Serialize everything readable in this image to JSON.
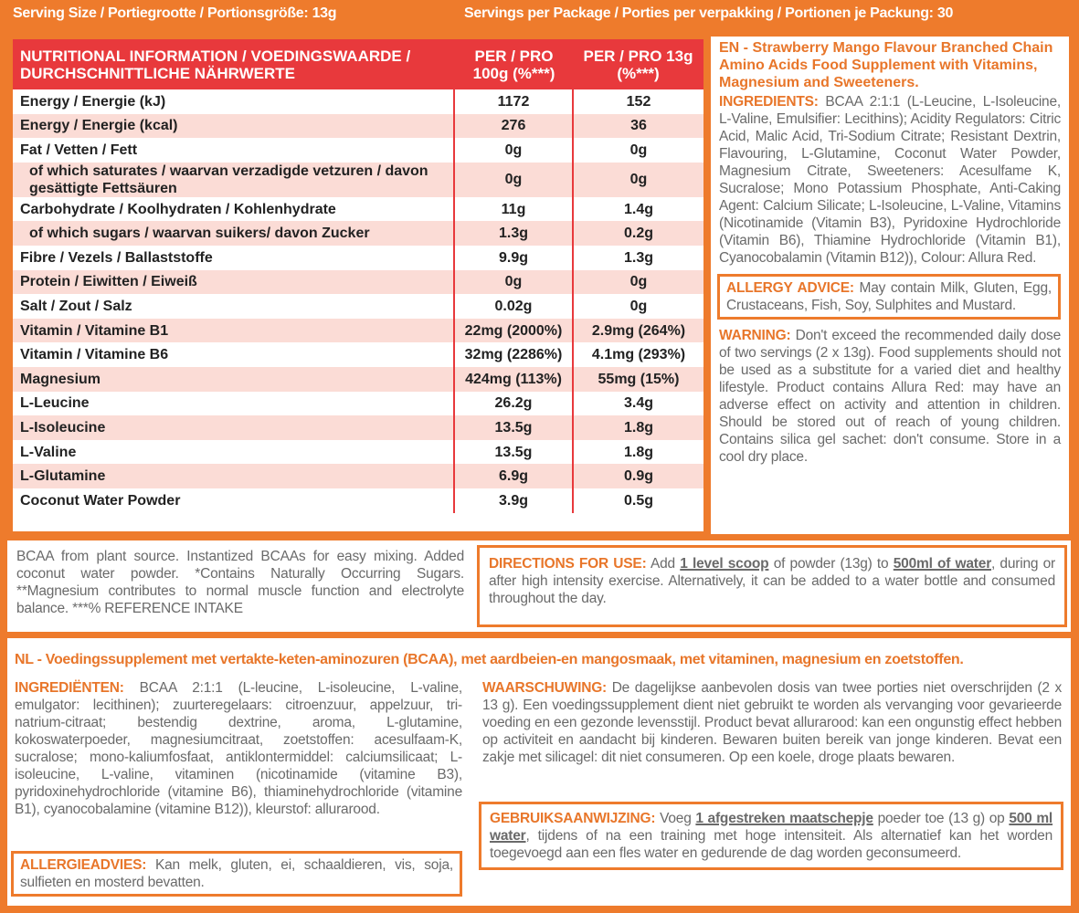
{
  "header": {
    "serving_size": "Serving Size / Portiegrootte / Portionsgröße: 13g",
    "servings_per_package": "Servings per Package / Porties per verpakking / Portionen je Packung: 30"
  },
  "table": {
    "header": [
      "NUTRITIONAL INFORMATION / VOEDINGSWAARDE / DURCHSCHNITTLICHE NÄHRWERTE",
      "PER / PRO 100g (%***)",
      "PER / PRO 13g (%***)"
    ],
    "rows": [
      [
        "Energy / Energie (kJ)",
        "1172",
        "152"
      ],
      [
        "Energy / Energie (kcal)",
        "276",
        "36"
      ],
      [
        "Fat / Vetten / Fett",
        "0g",
        "0g"
      ],
      [
        "of which saturates / waarvan verzadigde vetzuren / davon gesättigte Fettsäuren",
        "0g",
        "0g"
      ],
      [
        "Carbohydrate / Koolhydraten / Kohlenhydrate",
        "11g",
        "1.4g"
      ],
      [
        "of which sugars / waarvan suikers/ davon Zucker",
        "1.3g",
        "0.2g"
      ],
      [
        "Fibre / Vezels / Ballaststoffe",
        "9.9g",
        "1.3g"
      ],
      [
        "Protein / Eiwitten / Eiweiß",
        "0g",
        "0g"
      ],
      [
        "Salt / Zout / Salz",
        "0.02g",
        "0g"
      ],
      [
        "Vitamin / Vitamine B1",
        "22mg (2000%)",
        "2.9mg (264%)"
      ],
      [
        "Vitamin / Vitamine B6",
        "32mg (2286%)",
        "4.1mg (293%)"
      ],
      [
        "Magnesium",
        "424mg (113%)",
        "55mg (15%)"
      ],
      [
        "L-Leucine",
        "26.2g",
        "3.4g"
      ],
      [
        "L-Isoleucine",
        "13.5g",
        "1.8g"
      ],
      [
        "L-Valine",
        "13.5g",
        "1.8g"
      ],
      [
        "L-Glutamine",
        "6.9g",
        "0.9g"
      ],
      [
        "Coconut Water Powder",
        "3.9g",
        "0.5g"
      ]
    ]
  },
  "en": {
    "title": "EN - Strawberry Mango Flavour Branched Chain Amino Acids Food Supplement with Vitamins, Magnesium and Sweeteners.",
    "ingredients_label": "INGREDIENTS:",
    "ingredients": "BCAA 2:1:1 (L-Leucine, L-Isoleucine, L-Valine, Emulsifier: Lecithins); Acidity Regulators: Citric Acid, Malic Acid, Tri-Sodium Citrate; Resistant Dextrin, Flavouring, L-Glutamine, Coconut Water Powder, Magnesium Citrate, Sweeteners: Acesulfame K, Sucralose; Mono Potassium Phosphate, Anti-Caking Agent: Calcium Silicate; L-Isoleucine, L-Valine, Vitamins (Nicotinamide (Vitamin B3), Pyridoxine Hydrochloride (Vitamin B6), Thiamine Hydrochloride (Vitamin B1), Cyanocobalamin (Vitamin B12)), Colour: Allura Red.",
    "allergy_label": "ALLERGY ADVICE:",
    "allergy": "May contain Milk, Gluten, Egg, Crustaceans, Fish, Soy, Sulphites and Mustard.",
    "warning_label": "WARNING:",
    "warning": "Don't exceed the recommended daily dose of two servings (2 x 13g). Food supplements should not be used as a substitute for a varied diet and healthy lifestyle. Product contains Allura Red: may have an adverse effect on activity and attention in children. Should be stored out of reach of young children. Contains silica gel sachet: don't consume. Store in a cool dry place.",
    "footnote": "BCAA from plant source. Instantized BCAAs for easy mixing. Added coconut water powder. *Contains Naturally Occurring Sugars. **Magnesium contributes to normal muscle function and electrolyte balance. ***% REFERENCE INTAKE",
    "directions": {
      "label": "DIRECTIONS FOR USE:",
      "before": "Add",
      "scoop": "1 level scoop",
      "middle": "of powder (13g) to",
      "water": "500ml of water",
      "after": ", during or after high intensity exercise. Alternatively, it can be added to a water bottle and consumed throughout the day."
    }
  },
  "nl": {
    "title": "NL - Voedingssupplement met vertakte-keten-aminozuren (BCAA), met aardbeien-en mangosmaak, met vitaminen, magnesium en zoetstoffen.",
    "ingredients_label": "INGREDIËNTEN:",
    "ingredients": "BCAA 2:1:1 (L-leucine, L-isoleucine, L-valine, emulgator: lecithinen); zuurteregelaars: citroenzuur, appelzuur, tri-natrium-citraat; bestendig dextrine, aroma, L-glutamine, kokoswaterpoeder, magnesiumcitraat, zoetstoffen: acesulfaam-K, sucralose; mono-kaliumfosfaat, antiklontermiddel: calciumsilicaat; L-isoleucine, L-valine, vitaminen (nicotinamide (vitamine B3), pyridoxinehydrochloride (vitamine B6), thiaminehydrochloride (vitamine B1), cyanocobalamine (vitamine B12)), kleurstof: allurarood.",
    "allergy_label": "ALLERGIEADVIES:",
    "allergy": "Kan melk, gluten, ei, schaaldieren, vis, soja, sulfieten en mosterd bevatten.",
    "warning_label": "WAARSCHUWING:",
    "warning": "De dagelijkse aanbevolen dosis van twee porties niet overschrijden (2 x 13 g). Een voedingssupplement dient niet gebruikt te worden als vervanging voor gevarieerde voeding en een gezonde levensstijl. Product bevat allurarood: kan een ongunstig effect hebben op activiteit en aandacht bij kinderen. Bewaren buiten bereik van jonge kinderen. Bevat een zakje met silicagel: dit niet consumeren. Op een koele, droge plaats bewaren.",
    "directions": {
      "label": "GEBRUIKSAANWIJZING:",
      "before": "Voeg",
      "scoop": "1 afgestreken maatschepje",
      "middle": "poeder toe (13 g) op",
      "water": "500 ml water",
      "after": ", tijdens of na een training met hoge intensiteit. Als alternatief kan het worden toegevoegd aan een fles water en gedurende de dag worden geconsumeerd."
    }
  }
}
